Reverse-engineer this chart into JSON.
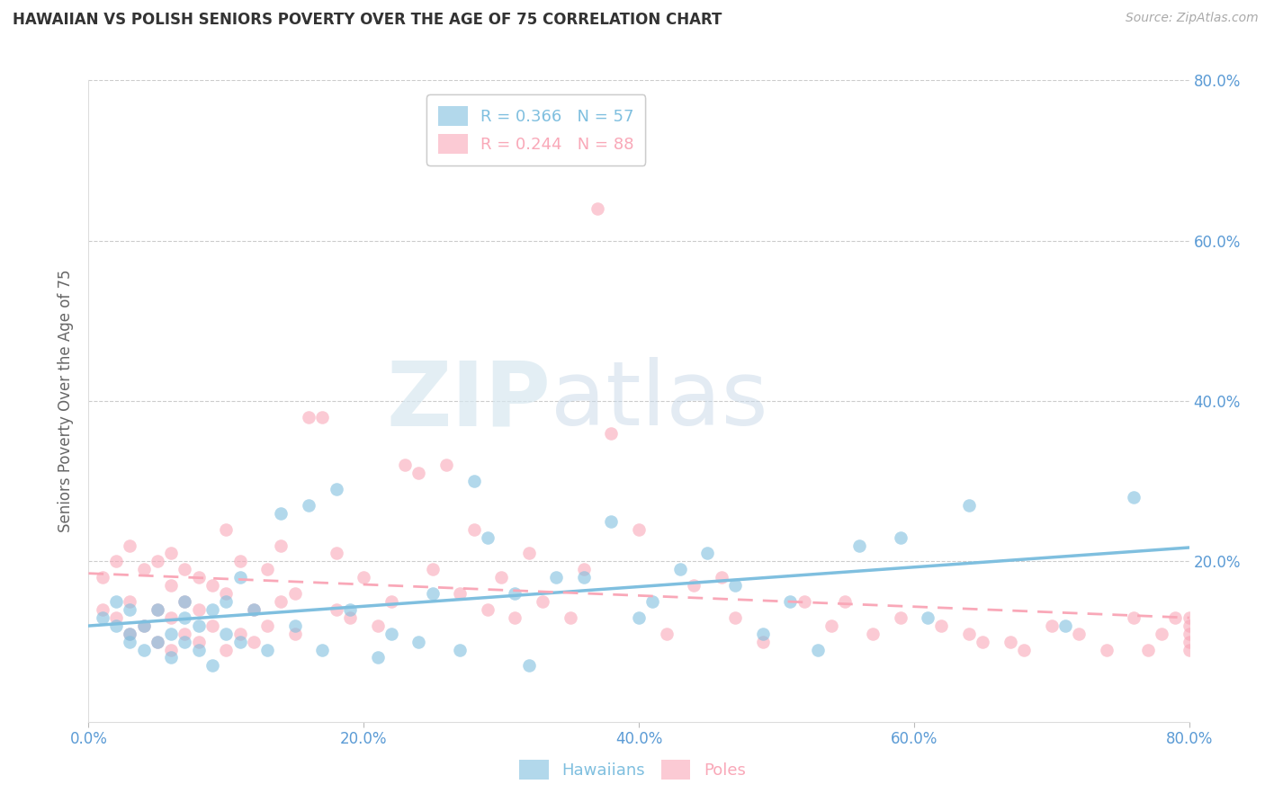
{
  "title": "HAWAIIAN VS POLISH SENIORS POVERTY OVER THE AGE OF 75 CORRELATION CHART",
  "source": "Source: ZipAtlas.com",
  "ylabel": "Seniors Poverty Over the Age of 75",
  "xlim": [
    0.0,
    0.8
  ],
  "ylim": [
    0.0,
    0.8
  ],
  "xticks": [
    0.0,
    0.2,
    0.4,
    0.6,
    0.8
  ],
  "yticks": [
    0.2,
    0.4,
    0.6,
    0.8
  ],
  "xticklabels": [
    "0.0%",
    "20.0%",
    "40.0%",
    "60.0%",
    "80.0%"
  ],
  "yticklabels": [
    "20.0%",
    "40.0%",
    "60.0%",
    "80.0%"
  ],
  "hawaiians_color": "#7fbfdf",
  "poles_color": "#f9a8b8",
  "R_hawaiians": 0.366,
  "N_hawaiians": 57,
  "R_poles": 0.244,
  "N_poles": 88,
  "legend_label_hawaiians": "Hawaiians",
  "legend_label_poles": "Poles",
  "background_color": "#ffffff",
  "grid_color": "#cccccc",
  "tick_color": "#5b9bd5",
  "hawaiians_x": [
    0.01,
    0.02,
    0.02,
    0.03,
    0.03,
    0.03,
    0.04,
    0.04,
    0.05,
    0.05,
    0.06,
    0.06,
    0.07,
    0.07,
    0.07,
    0.08,
    0.08,
    0.09,
    0.09,
    0.1,
    0.1,
    0.11,
    0.11,
    0.12,
    0.13,
    0.14,
    0.15,
    0.16,
    0.17,
    0.18,
    0.19,
    0.21,
    0.22,
    0.24,
    0.25,
    0.27,
    0.28,
    0.29,
    0.31,
    0.32,
    0.34,
    0.36,
    0.38,
    0.4,
    0.41,
    0.43,
    0.45,
    0.47,
    0.49,
    0.51,
    0.53,
    0.56,
    0.59,
    0.61,
    0.64,
    0.71,
    0.76
  ],
  "hawaiians_y": [
    0.13,
    0.15,
    0.12,
    0.11,
    0.14,
    0.1,
    0.09,
    0.12,
    0.1,
    0.14,
    0.08,
    0.11,
    0.1,
    0.13,
    0.15,
    0.09,
    0.12,
    0.07,
    0.14,
    0.11,
    0.15,
    0.1,
    0.18,
    0.14,
    0.09,
    0.26,
    0.12,
    0.27,
    0.09,
    0.29,
    0.14,
    0.08,
    0.11,
    0.1,
    0.16,
    0.09,
    0.3,
    0.23,
    0.16,
    0.07,
    0.18,
    0.18,
    0.25,
    0.13,
    0.15,
    0.19,
    0.21,
    0.17,
    0.11,
    0.15,
    0.09,
    0.22,
    0.23,
    0.13,
    0.27,
    0.12,
    0.28
  ],
  "poles_x": [
    0.01,
    0.01,
    0.02,
    0.02,
    0.03,
    0.03,
    0.03,
    0.04,
    0.04,
    0.05,
    0.05,
    0.05,
    0.06,
    0.06,
    0.06,
    0.06,
    0.07,
    0.07,
    0.07,
    0.08,
    0.08,
    0.08,
    0.09,
    0.09,
    0.1,
    0.1,
    0.1,
    0.11,
    0.11,
    0.12,
    0.12,
    0.13,
    0.13,
    0.14,
    0.14,
    0.15,
    0.15,
    0.16,
    0.17,
    0.18,
    0.18,
    0.19,
    0.2,
    0.21,
    0.22,
    0.23,
    0.24,
    0.25,
    0.26,
    0.27,
    0.28,
    0.29,
    0.3,
    0.31,
    0.32,
    0.33,
    0.35,
    0.36,
    0.37,
    0.38,
    0.4,
    0.42,
    0.44,
    0.46,
    0.47,
    0.49,
    0.52,
    0.54,
    0.55,
    0.57,
    0.59,
    0.62,
    0.64,
    0.65,
    0.67,
    0.68,
    0.7,
    0.72,
    0.74,
    0.76,
    0.77,
    0.78,
    0.79,
    0.8,
    0.8,
    0.8,
    0.8,
    0.8
  ],
  "poles_y": [
    0.18,
    0.14,
    0.2,
    0.13,
    0.11,
    0.15,
    0.22,
    0.12,
    0.19,
    0.1,
    0.14,
    0.2,
    0.09,
    0.13,
    0.17,
    0.21,
    0.11,
    0.15,
    0.19,
    0.1,
    0.14,
    0.18,
    0.12,
    0.17,
    0.09,
    0.16,
    0.24,
    0.11,
    0.2,
    0.1,
    0.14,
    0.12,
    0.19,
    0.15,
    0.22,
    0.11,
    0.16,
    0.38,
    0.38,
    0.14,
    0.21,
    0.13,
    0.18,
    0.12,
    0.15,
    0.32,
    0.31,
    0.19,
    0.32,
    0.16,
    0.24,
    0.14,
    0.18,
    0.13,
    0.21,
    0.15,
    0.13,
    0.19,
    0.64,
    0.36,
    0.24,
    0.11,
    0.17,
    0.18,
    0.13,
    0.1,
    0.15,
    0.12,
    0.15,
    0.11,
    0.13,
    0.12,
    0.11,
    0.1,
    0.1,
    0.09,
    0.12,
    0.11,
    0.09,
    0.13,
    0.09,
    0.11,
    0.13,
    0.09,
    0.1,
    0.11,
    0.12,
    0.13
  ]
}
